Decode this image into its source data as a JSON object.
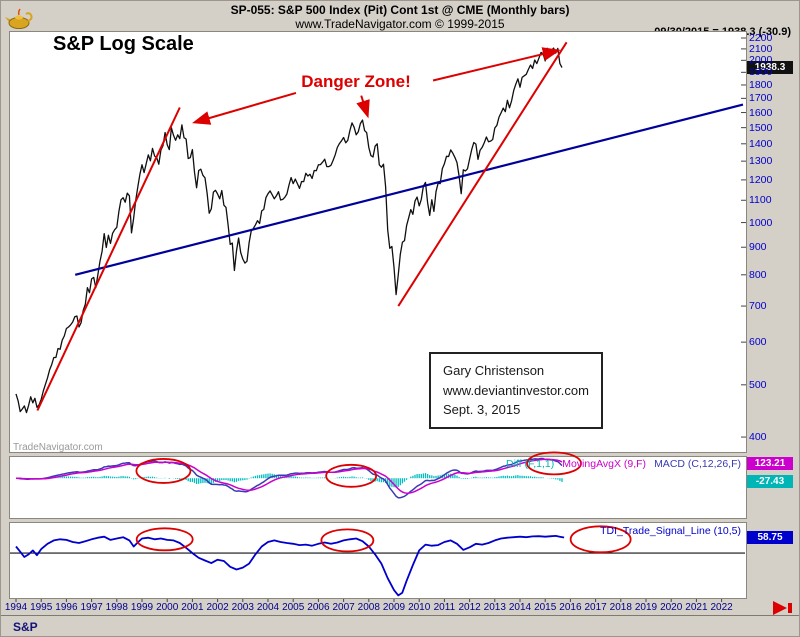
{
  "header": {
    "symbol_title": "SP-055:  S&P 500 Index (Pit) Cont 1st @ CME  (Monthly bars)",
    "site_line": "www.TradeNavigator.com © 1999-2015",
    "quote_line": "09/30/2015 = 1938.3 (-30.9)"
  },
  "main_chart": {
    "title": "S&P Log Scale",
    "danger_label": "Danger Zone!",
    "watermark": "TradeNavigator.com",
    "price_badge": "1938.3",
    "annotation_box": {
      "lines": [
        "Gary Christenson",
        "www.deviantinvestor.com",
        "Sept. 3, 2015"
      ]
    }
  },
  "macd_panel": {
    "labels": [
      {
        "text": "Diff (F,1,1)",
        "color": "#00b5b5"
      },
      {
        "text": "MovingAvgX (9,F)",
        "color": "#cc00cc"
      },
      {
        "text": "MACD (C,12,26,F)",
        "color": "#3a3ab4"
      }
    ],
    "badges": [
      {
        "text": "123.21",
        "color": "#cc00cc"
      },
      {
        "text": "-27.43",
        "color": "#00b5b5"
      }
    ]
  },
  "tdi_panel": {
    "label": "TDI_Trade_Signal_Line (10,5)",
    "badge": {
      "text": "58.75",
      "color": "#0000cc"
    }
  },
  "footer": {
    "tab_label": "S&P"
  },
  "chart_data": {
    "type": "line",
    "title": "S&P 500 Index (Pit) Cont 1st @ CME (Monthly bars), log scale",
    "x_axis": {
      "years": [
        1994,
        1995,
        1996,
        1997,
        1998,
        1999,
        2000,
        2001,
        2002,
        2003,
        2004,
        2005,
        2006,
        2007,
        2008,
        2009,
        2010,
        2011,
        2012,
        2013,
        2014,
        2015,
        2016,
        2017,
        2018,
        2019,
        2020,
        2021,
        2022
      ]
    },
    "y_axis": {
      "scale": "log",
      "ticks": [
        2200,
        2100,
        2000,
        1900,
        1800,
        1700,
        1600,
        1500,
        1400,
        1300,
        1200,
        1100,
        1000,
        900,
        800,
        700,
        600,
        500,
        400
      ]
    },
    "last_bar": {
      "date": "09/30/2015",
      "close": 1938.3,
      "change": -30.9
    },
    "price_series": {
      "name": "S&P 500 monthly close",
      "start_year": 1994,
      "interval_months": 1,
      "closes": [
        481,
        467,
        446,
        451,
        457,
        444,
        458,
        475,
        463,
        472,
        454,
        459,
        470,
        487,
        501,
        515,
        533,
        545,
        562,
        562,
        584,
        582,
        605,
        616,
        636,
        640,
        646,
        654,
        669,
        671,
        640,
        652,
        687,
        705,
        757,
        741,
        786,
        791,
        757,
        801,
        848,
        885,
        954,
        899,
        947,
        915,
        955,
        970,
        980,
        1049,
        1102,
        1112,
        1091,
        1134,
        1121,
        957,
        1017,
        1099,
        1164,
        1229,
        1280,
        1238,
        1286,
        1335,
        1302,
        1373,
        1329,
        1320,
        1283,
        1363,
        1389,
        1469,
        1394,
        1366,
        1499,
        1452,
        1421,
        1455,
        1431,
        1518,
        1437,
        1429,
        1315,
        1320,
        1366,
        1240,
        1160,
        1249,
        1256,
        1224,
        1211,
        1134,
        1041,
        1060,
        1139,
        1148,
        1130,
        1107,
        1147,
        1077,
        1067,
        990,
        911,
        916,
        815,
        886,
        936,
        880,
        856,
        841,
        848,
        917,
        964,
        975,
        990,
        1008,
        996,
        1051,
        1058,
        1112,
        1131,
        1145,
        1126,
        1107,
        1121,
        1141,
        1101,
        1104,
        1114,
        1130,
        1174,
        1212,
        1181,
        1204,
        1181,
        1157,
        1192,
        1191,
        1234,
        1220,
        1229,
        1207,
        1249,
        1248,
        1280,
        1281,
        1295,
        1311,
        1270,
        1270,
        1277,
        1304,
        1336,
        1378,
        1401,
        1418,
        1438,
        1406,
        1421,
        1482,
        1531,
        1503,
        1455,
        1474,
        1527,
        1549,
        1481,
        1468,
        1378,
        1331,
        1323,
        1386,
        1400,
        1280,
        1267,
        1283,
        1166,
        969,
        896,
        903,
        826,
        735,
        798,
        873,
        919,
        926,
        987,
        1021,
        1057,
        1036,
        1096,
        1115,
        1074,
        1104,
        1169,
        1187,
        1089,
        1031,
        1102,
        1049,
        1141,
        1183,
        1181,
        1258,
        1286,
        1327,
        1326,
        1364,
        1345,
        1321,
        1292,
        1219,
        1131,
        1253,
        1247,
        1258,
        1312,
        1366,
        1408,
        1398,
        1310,
        1362,
        1379,
        1407,
        1441,
        1412,
        1416,
        1426,
        1498,
        1515,
        1569,
        1598,
        1631,
        1606,
        1686,
        1633,
        1682,
        1757,
        1806,
        1848,
        1783,
        1859,
        1872,
        1884,
        1924,
        1960,
        1931,
        2003,
        1972,
        2018,
        2068,
        2059,
        1995,
        2105,
        2068,
        2086,
        2107,
        2063,
        2104,
        1972,
        1938.3
      ]
    },
    "trendlines": {
      "blue_support": [
        [
          1996.35,
          800
        ],
        [
          2022.85,
          1655
        ]
      ],
      "red_rallies": [
        [
          [
            1994.85,
            448
          ],
          [
            2000.5,
            1635
          ]
        ],
        [
          [
            2009.17,
            700
          ],
          [
            2015.85,
            2160
          ]
        ]
      ]
    },
    "arrows": [
      [
        [
          2005.11,
          1740
        ],
        [
          2001.1,
          1535
        ]
      ],
      [
        [
          2007.7,
          1720
        ],
        [
          2007.95,
          1580
        ]
      ],
      [
        [
          2010.55,
          1835
        ],
        [
          2015.5,
          2085
        ]
      ]
    ],
    "macd": {
      "params": "C,12,26,F",
      "signal_params": "9,F",
      "diff_params": "F,1,1",
      "last_movingavgx": 123.21,
      "last_diff": -27.43,
      "circles": [
        [
          1999.85,
          55,
          27,
          12
        ],
        [
          2007.3,
          18,
          25,
          11
        ],
        [
          2015.35,
          112,
          27,
          11
        ]
      ]
    },
    "tdi": {
      "params": "10,5",
      "last_value": 58.75,
      "circles": [
        [
          1999.9,
          52,
          28,
          11
        ],
        [
          2007.15,
          48,
          26,
          11
        ],
        [
          2017.2,
          52,
          30,
          13
        ]
      ],
      "series": [
        [
          1994.0,
          25
        ],
        [
          1994.17,
          5
        ],
        [
          1994.33,
          -15
        ],
        [
          1994.5,
          -5
        ],
        [
          1994.67,
          10
        ],
        [
          1994.83,
          -8
        ],
        [
          1995.0,
          15
        ],
        [
          1995.25,
          35
        ],
        [
          1995.5,
          48
        ],
        [
          1995.75,
          52
        ],
        [
          1996.0,
          50
        ],
        [
          1996.25,
          42
        ],
        [
          1996.5,
          38
        ],
        [
          1996.75,
          45
        ],
        [
          1997.0,
          52
        ],
        [
          1997.25,
          58
        ],
        [
          1997.5,
          62
        ],
        [
          1997.75,
          50
        ],
        [
          1998.0,
          55
        ],
        [
          1998.25,
          60
        ],
        [
          1998.5,
          48
        ],
        [
          1998.67,
          25
        ],
        [
          1998.83,
          40
        ],
        [
          1999.0,
          55
        ],
        [
          1999.25,
          58
        ],
        [
          1999.5,
          52
        ],
        [
          1999.75,
          55
        ],
        [
          2000.0,
          50
        ],
        [
          2000.25,
          48
        ],
        [
          2000.5,
          38
        ],
        [
          2000.75,
          20
        ],
        [
          2001.0,
          0
        ],
        [
          2001.25,
          -18
        ],
        [
          2001.5,
          -28
        ],
        [
          2001.75,
          -38
        ],
        [
          2002.0,
          -25
        ],
        [
          2002.25,
          -30
        ],
        [
          2002.5,
          -52
        ],
        [
          2002.75,
          -62
        ],
        [
          2003.0,
          -55
        ],
        [
          2003.25,
          -40
        ],
        [
          2003.5,
          -5
        ],
        [
          2003.75,
          25
        ],
        [
          2004.0,
          42
        ],
        [
          2004.25,
          48
        ],
        [
          2004.5,
          42
        ],
        [
          2004.75,
          38
        ],
        [
          2005.0,
          35
        ],
        [
          2005.25,
          30
        ],
        [
          2005.5,
          32
        ],
        [
          2005.75,
          28
        ],
        [
          2006.0,
          35
        ],
        [
          2006.25,
          40
        ],
        [
          2006.5,
          35
        ],
        [
          2006.75,
          40
        ],
        [
          2007.0,
          48
        ],
        [
          2007.25,
          52
        ],
        [
          2007.5,
          55
        ],
        [
          2007.75,
          45
        ],
        [
          2008.0,
          25
        ],
        [
          2008.25,
          -5
        ],
        [
          2008.5,
          -40
        ],
        [
          2008.75,
          -95
        ],
        [
          2009.0,
          -140
        ],
        [
          2009.17,
          -160
        ],
        [
          2009.33,
          -150
        ],
        [
          2009.5,
          -105
        ],
        [
          2009.75,
          -45
        ],
        [
          2010.0,
          10
        ],
        [
          2010.25,
          32
        ],
        [
          2010.5,
          28
        ],
        [
          2010.75,
          30
        ],
        [
          2011.0,
          42
        ],
        [
          2011.25,
          48
        ],
        [
          2011.5,
          35
        ],
        [
          2011.75,
          12
        ],
        [
          2012.0,
          22
        ],
        [
          2012.25,
          35
        ],
        [
          2012.5,
          32
        ],
        [
          2012.75,
          38
        ],
        [
          2013.0,
          48
        ],
        [
          2013.25,
          55
        ],
        [
          2013.5,
          58
        ],
        [
          2013.75,
          60
        ],
        [
          2014.0,
          62
        ],
        [
          2014.25,
          60
        ],
        [
          2014.5,
          63
        ],
        [
          2014.75,
          64
        ],
        [
          2015.0,
          62
        ],
        [
          2015.25,
          64
        ],
        [
          2015.42,
          65
        ],
        [
          2015.58,
          62
        ],
        [
          2015.75,
          58.75
        ]
      ]
    },
    "colors": {
      "price": "#101010",
      "blue_trend": "#00009a",
      "red": "#dd0000",
      "diff": "#00bdbd",
      "movingavgx": "#cc00cc",
      "macd_line": "#3a3ab4",
      "tdi": "#0000cc",
      "badge_price": "#111111"
    }
  }
}
